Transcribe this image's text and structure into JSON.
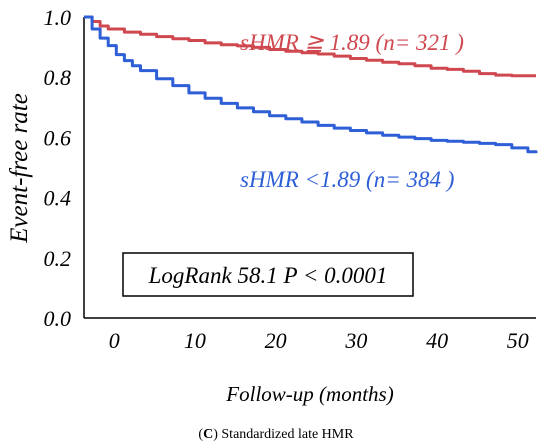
{
  "chart_data": {
    "type": "line",
    "xlabel": "Follow-up (months)",
    "ylabel": "Event-free rate",
    "caption_letter": "C",
    "caption_text": " Standardized late HMR",
    "xlim": [
      -3,
      53
    ],
    "ylim": [
      0.0,
      1.0
    ],
    "x_ticks": [
      0,
      10,
      20,
      30,
      40,
      50
    ],
    "y_ticks": [
      0.0,
      0.2,
      0.4,
      0.6,
      0.8,
      1.0
    ],
    "y_tick_labels": [
      "0.0",
      "0.2",
      "0.4",
      "0.6",
      "0.8",
      "1.0"
    ],
    "grid": false,
    "annotation": "LogRank 58.1 P < 0.0001",
    "series": [
      {
        "name": "sHMR ≧ 1.89 (n= 321 )",
        "color": "#d0484f",
        "x": [
          -3,
          -2,
          -1,
          0,
          2,
          4,
          6,
          8,
          10,
          12,
          14,
          16,
          18,
          20,
          22,
          24,
          26,
          28,
          30,
          32,
          34,
          36,
          38,
          40,
          42,
          44,
          46,
          48,
          50,
          52,
          53
        ],
        "y": [
          1.0,
          0.985,
          0.97,
          0.96,
          0.95,
          0.943,
          0.935,
          0.928,
          0.922,
          0.914,
          0.908,
          0.904,
          0.899,
          0.892,
          0.886,
          0.881,
          0.877,
          0.87,
          0.862,
          0.856,
          0.85,
          0.845,
          0.838,
          0.83,
          0.826,
          0.82,
          0.812,
          0.807,
          0.805,
          0.805,
          0.805
        ]
      },
      {
        "name": "sHMR <1.89 (n= 384 )",
        "color": "#2e5fd6",
        "x": [
          -3,
          -2,
          -1,
          0,
          1,
          2,
          3,
          4,
          6,
          8,
          10,
          12,
          14,
          16,
          18,
          20,
          22,
          24,
          26,
          28,
          30,
          32,
          34,
          36,
          38,
          40,
          42,
          44,
          46,
          48,
          50,
          52,
          53
        ],
        "y": [
          1.0,
          0.96,
          0.93,
          0.905,
          0.875,
          0.855,
          0.838,
          0.822,
          0.795,
          0.772,
          0.748,
          0.73,
          0.713,
          0.698,
          0.685,
          0.672,
          0.662,
          0.651,
          0.64,
          0.631,
          0.623,
          0.615,
          0.607,
          0.601,
          0.596,
          0.59,
          0.587,
          0.584,
          0.58,
          0.576,
          0.565,
          0.552,
          0.548
        ]
      }
    ]
  }
}
